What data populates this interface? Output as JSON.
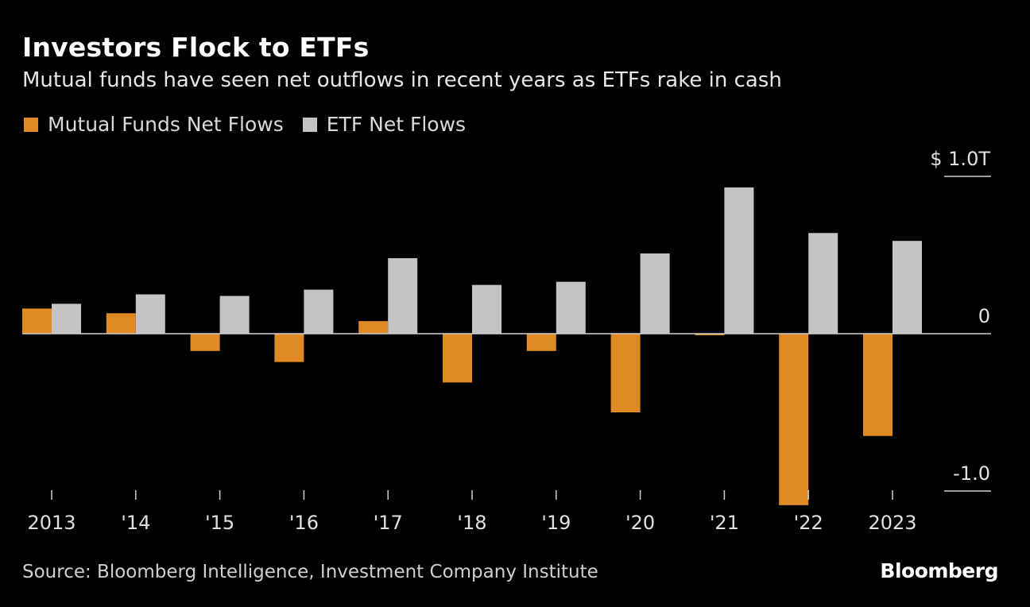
{
  "title": "Investors Flock to ETFs",
  "subtitle": "Mutual funds have seen net outflows in recent years as ETFs rake in cash",
  "source": "Source: Bloomberg Intelligence, Investment Company Institute",
  "brand": "Bloomberg",
  "colors": {
    "mutual_funds": "#e08a23",
    "etf": "#c4c4c4",
    "background": "#000000"
  },
  "chart_data": {
    "type": "bar",
    "categories": [
      "2013",
      "'14",
      "'15",
      "'16",
      "'17",
      "'18",
      "'19",
      "'20",
      "'21",
      "'22",
      "2023"
    ],
    "series": [
      {
        "name": "Mutual Funds Net Flows",
        "values": [
          0.16,
          0.13,
          -0.11,
          -0.18,
          0.08,
          -0.31,
          -0.11,
          -0.5,
          -0.01,
          -1.09,
          -0.65
        ]
      },
      {
        "name": "ETF Net Flows",
        "values": [
          0.19,
          0.25,
          0.24,
          0.28,
          0.48,
          0.31,
          0.33,
          0.51,
          0.93,
          0.64,
          0.59
        ]
      }
    ],
    "ylim": [
      -1.0,
      1.0
    ],
    "yticks": [
      {
        "value": 1.0,
        "label": "$ 1.0T"
      },
      {
        "value": 0,
        "label": "0"
      },
      {
        "value": -1.0,
        "label": "-1.0"
      }
    ],
    "xlabel": "",
    "ylabel": "",
    "legend": "top-left",
    "grid": false
  }
}
